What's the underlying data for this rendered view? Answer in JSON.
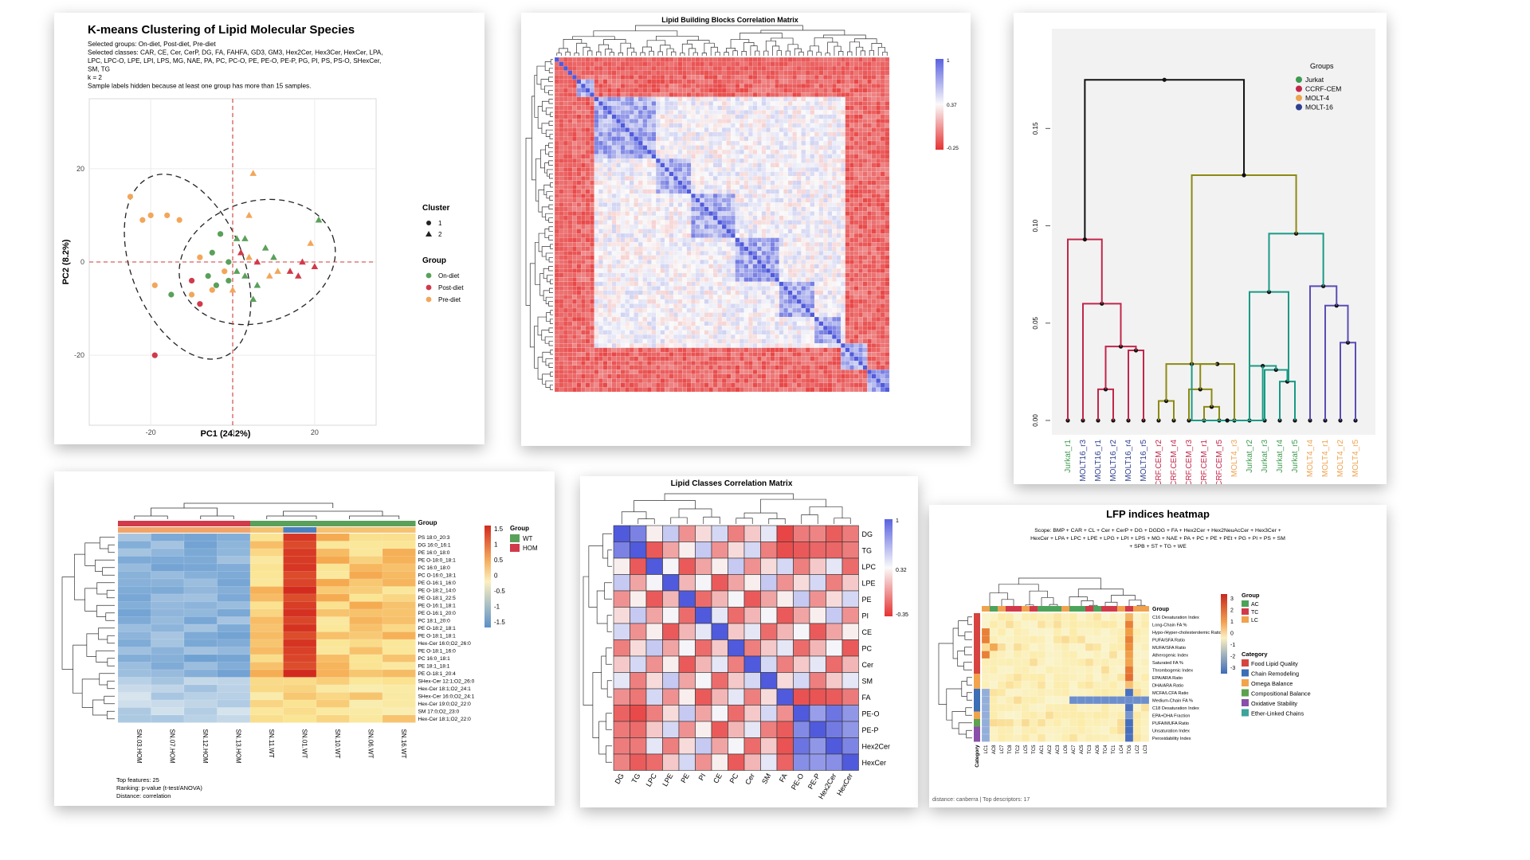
{
  "kmeans": {
    "title": "K-means Clustering of Lipid Molecular Species",
    "info": [
      "Selected groups: On-diet, Post-diet, Pre-diet",
      "Selected classes: CAR, CE, Cer, CerP, DG, FA, FAHFA, GD3, GM3, Hex2Cer, Hex3Cer, HexCer, LPA,",
      "LPC, LPC-O, LPE, LPI, LPS, MG, NAE, PA, PC, PC-O, PE, PE-O, PE-P, PG, PI, PS, PS-O, SHexCer,",
      "SM, TG",
      "k = 2",
      "Sample labels hidden because at least one group has more than 15 samples."
    ],
    "xlabel": "PC1 (24.2%)",
    "ylabel": "PC2 (8.2%)",
    "xticks": [
      "-20",
      "0",
      "20"
    ],
    "yticks": [
      "20",
      "0",
      "-20"
    ],
    "legend_cluster_title": "Cluster",
    "clusters": [
      "1",
      "2"
    ],
    "legend_group_title": "Group",
    "groups": [
      {
        "name": "On-diet",
        "color": "#5aa05a"
      },
      {
        "name": "Post-diet",
        "color": "#d03a4a"
      },
      {
        "name": "Pre-diet",
        "color": "#f2a65a"
      }
    ]
  },
  "chart_data": [
    {
      "type": "scatter",
      "title": "K-means Clustering of Lipid Molecular Species",
      "xlabel": "PC1 (24.2%)",
      "ylabel": "PC2 (8.2%)",
      "xlim": [
        -35,
        35
      ],
      "ylim": [
        -35,
        35
      ],
      "points": [
        {
          "x": -25,
          "y": 14,
          "group": "Pre-diet",
          "cluster": "1"
        },
        {
          "x": -20,
          "y": 10,
          "group": "Pre-diet",
          "cluster": "1"
        },
        {
          "x": -22,
          "y": 9,
          "group": "Pre-diet",
          "cluster": "1"
        },
        {
          "x": -16,
          "y": 10,
          "group": "Pre-diet",
          "cluster": "1"
        },
        {
          "x": -13,
          "y": 9,
          "group": "Pre-diet",
          "cluster": "1"
        },
        {
          "x": -19,
          "y": -5,
          "group": "Pre-diet",
          "cluster": "1"
        },
        {
          "x": -15,
          "y": -7,
          "group": "On-diet",
          "cluster": "1"
        },
        {
          "x": -10,
          "y": -7,
          "group": "Pre-diet",
          "cluster": "1"
        },
        {
          "x": -8,
          "y": -9,
          "group": "Post-diet",
          "cluster": "1"
        },
        {
          "x": -5,
          "y": -6,
          "group": "Pre-diet",
          "cluster": "1"
        },
        {
          "x": -10,
          "y": -4,
          "group": "Post-diet",
          "cluster": "1"
        },
        {
          "x": -6,
          "y": -3,
          "group": "On-diet",
          "cluster": "1"
        },
        {
          "x": -4,
          "y": -5,
          "group": "On-diet",
          "cluster": "1"
        },
        {
          "x": -1,
          "y": -4,
          "group": "On-diet",
          "cluster": "1"
        },
        {
          "x": -8,
          "y": 1,
          "group": "Pre-diet",
          "cluster": "1"
        },
        {
          "x": -5,
          "y": 2,
          "group": "On-diet",
          "cluster": "1"
        },
        {
          "x": -3,
          "y": 6,
          "group": "On-diet",
          "cluster": "1"
        },
        {
          "x": -1,
          "y": 0,
          "group": "On-diet",
          "cluster": "1"
        },
        {
          "x": -2,
          "y": -2,
          "group": "Pre-diet",
          "cluster": "1"
        },
        {
          "x": -19,
          "y": -20,
          "group": "Post-diet",
          "cluster": "1"
        },
        {
          "x": 5,
          "y": 19,
          "group": "Pre-diet",
          "cluster": "2"
        },
        {
          "x": 4,
          "y": 10,
          "group": "Pre-diet",
          "cluster": "2"
        },
        {
          "x": 1,
          "y": 5,
          "group": "On-diet",
          "cluster": "2"
        },
        {
          "x": 3,
          "y": 5,
          "group": "On-diet",
          "cluster": "2"
        },
        {
          "x": 2,
          "y": 2,
          "group": "Post-diet",
          "cluster": "2"
        },
        {
          "x": 4,
          "y": 1,
          "group": "Pre-diet",
          "cluster": "2"
        },
        {
          "x": 1,
          "y": -2,
          "group": "On-diet",
          "cluster": "2"
        },
        {
          "x": 3,
          "y": -3,
          "group": "On-diet",
          "cluster": "2"
        },
        {
          "x": 6,
          "y": 0,
          "group": "Post-diet",
          "cluster": "2"
        },
        {
          "x": 8,
          "y": 3,
          "group": "On-diet",
          "cluster": "2"
        },
        {
          "x": 10,
          "y": 1,
          "group": "On-diet",
          "cluster": "2"
        },
        {
          "x": 11,
          "y": -2,
          "group": "Pre-diet",
          "cluster": "2"
        },
        {
          "x": 14,
          "y": -2,
          "group": "Post-diet",
          "cluster": "2"
        },
        {
          "x": 16,
          "y": -3,
          "group": "Post-diet",
          "cluster": "2"
        },
        {
          "x": 17,
          "y": 0,
          "group": "Post-diet",
          "cluster": "2"
        },
        {
          "x": 20,
          "y": -1,
          "group": "Post-diet",
          "cluster": "2"
        },
        {
          "x": 9,
          "y": -3,
          "group": "Pre-diet",
          "cluster": "2"
        },
        {
          "x": 6,
          "y": -5,
          "group": "On-diet",
          "cluster": "2"
        },
        {
          "x": 21,
          "y": 9,
          "group": "On-diet",
          "cluster": "2"
        },
        {
          "x": 19,
          "y": 4,
          "group": "Pre-diet",
          "cluster": "2"
        },
        {
          "x": 5,
          "y": -8,
          "group": "On-diet",
          "cluster": "2"
        },
        {
          "x": 0,
          "y": -6,
          "group": "Pre-diet",
          "cluster": "2"
        }
      ]
    },
    {
      "type": "heatmap",
      "title": "Lipid Building Blocks Correlation Matrix",
      "legend_ticks": [
        "1",
        "0.37",
        "-0.25"
      ]
    },
    {
      "type": "line",
      "title": "",
      "yticks": [
        "0.15",
        "0.10",
        "0.05",
        "0.00"
      ],
      "ylim": [
        0,
        0.18
      ],
      "legend_title": "Groups",
      "groups": [
        {
          "name": "Jurkat",
          "color": "#3d9a4e"
        },
        {
          "name": "CCRF-CEM",
          "color": "#c2264a"
        },
        {
          "name": "MOLT-4",
          "color": "#eea34f"
        },
        {
          "name": "MOLT-16",
          "color": "#2e3f8f"
        }
      ],
      "leaves": [
        {
          "label": "Jurkat_r1",
          "color": "#3d9a4e"
        },
        {
          "label": "MOLT16_r3",
          "color": "#2e3f8f"
        },
        {
          "label": "MOLT16_r1",
          "color": "#2e3f8f"
        },
        {
          "label": "MOLT16_r2",
          "color": "#2e3f8f"
        },
        {
          "label": "MOLT16_r4",
          "color": "#2e3f8f"
        },
        {
          "label": "MOLT16_r5",
          "color": "#2e3f8f"
        },
        {
          "label": "CCRF.CEM_r2",
          "color": "#c2264a"
        },
        {
          "label": "CCRF.CEM_r4",
          "color": "#c2264a"
        },
        {
          "label": "CCRF.CEM_r3",
          "color": "#c2264a"
        },
        {
          "label": "CCRF.CEM_r1",
          "color": "#c2264a"
        },
        {
          "label": "CCRF.CEM_r5",
          "color": "#c2264a"
        },
        {
          "label": "MOLT4_r3",
          "color": "#eea34f"
        },
        {
          "label": "Jurkat_r2",
          "color": "#3d9a4e"
        },
        {
          "label": "Jurkat_r3",
          "color": "#3d9a4e"
        },
        {
          "label": "Jurkat_r4",
          "color": "#3d9a4e"
        },
        {
          "label": "Jurkat_r5",
          "color": "#3d9a4e"
        },
        {
          "label": "MOLT4_r4",
          "color": "#eea34f"
        },
        {
          "label": "MOLT4_r1",
          "color": "#eea34f"
        },
        {
          "label": "MOLT4_r2",
          "color": "#eea34f"
        },
        {
          "label": "MOLT4_r5",
          "color": "#eea34f"
        }
      ]
    },
    {
      "type": "heatmap",
      "title": "",
      "legend_ticks": [
        "1.5",
        "1",
        "0.5",
        "0",
        "-0.5",
        "-1",
        "-1.5"
      ],
      "group_title": "Group",
      "groups": [
        {
          "name": "WT",
          "color": "#5aa05a"
        },
        {
          "name": "HOM",
          "color": "#d03a4a"
        }
      ],
      "rows": [
        "PS 18:0_20:3",
        "DG 16:0_16:1",
        "PE 16:0_18:0",
        "PE O-18:0_18:1",
        "PC 16:0_18:0",
        "PC O-16:0_18:1",
        "PE O-16:1_16:0",
        "PE O-18:2_14:0",
        "PE O-18:1_22:5",
        "PE O-16:1_18:1",
        "PE O-16:1_20:0",
        "PC 18:1_20:0",
        "PE O-18:2_18:1",
        "PE O-18:1_18:1",
        "Hex-Cer 16:0;O2_26:0",
        "PE O-18:1_16:0",
        "PC 16:0_18:1",
        "PE 18:1_18:1",
        "PE O-18:1_20:4",
        "SHex-Cer 12:1;O2_26:0",
        "Hex-Cer 18:1;O2_24:1",
        "SHex-Cer 16:0;O2_24:1",
        "Hex-Cer 19:0;O2_22:0",
        "SM 17:0;O2_23:0",
        "Hex-Cer 18:1;O2_22:0"
      ],
      "columns": [
        "SN.03.HOM",
        "SN.07.HOM",
        "SN.12.HOM",
        "SN.13.HOM",
        "SN.11.WT",
        "SN.01.WT",
        "SN.10.WT",
        "SN.06.WT",
        "SN.16.WT"
      ],
      "column_groups": [
        "HOM",
        "HOM",
        "HOM",
        "HOM",
        "WT",
        "WT",
        "WT",
        "WT",
        "WT"
      ],
      "notes": [
        "Top features: 25",
        "Ranking: p-value (t-test/ANOVA)",
        "Distance: correlation"
      ]
    },
    {
      "type": "heatmap",
      "title": "Lipid Classes Correlation Matrix",
      "labels": [
        "DG",
        "TG",
        "LPC",
        "LPE",
        "PE",
        "PI",
        "CE",
        "PC",
        "Cer",
        "SM",
        "FA",
        "PE-O",
        "PE-P",
        "Hex2Cer",
        "HexCer"
      ],
      "legend_ticks": [
        "1",
        "0.32",
        "-0.35"
      ]
    },
    {
      "type": "heatmap",
      "title": "LFP indices heatmap",
      "scope": [
        "Scope: BMP + CAR + CL + Cer + CerP + DG + DGDG + FA + Hex2Cer + Hex2NeuAcCer + Hex3Cer +",
        "HexCer + LPA + LPC + LPE + LPG + LPI + LPS + MG + NAE + PA + PC + PE + PEt + PG + PI + PS + SM",
        "+ SPB + ST + TG + WE"
      ],
      "rows": [
        "C16 Desaturation Index",
        "Long-Chain FA %",
        "Hypo-/Hyper-cholesterolemic Ratio",
        "PUFA/SFA Ratio",
        "MUFA/SFA Ratio",
        "Atherogenic Index",
        "Saturated FA %",
        "Thrombogenic Index",
        "EPA/ARA Ratio",
        "DHA/ARA Ratio",
        "MCFA/LCFA Ratio",
        "Medium-Chain FA %",
        "C18 Desaturation Index",
        "EPA+DHA Fraction",
        "PUFA/MUFA Ratio",
        "Unsaturation Index",
        "Peroxidability Index"
      ],
      "columns": [
        "LC1",
        "AC8",
        "LC7",
        "TC8",
        "TC2",
        "LC5",
        "TC5",
        "AC1",
        "AC2",
        "AC3",
        "LC6",
        "AC7",
        "AC5",
        "TC3",
        "AC6",
        "TC4",
        "TC1",
        "LC4",
        "TC6",
        "LC2",
        "LC3"
      ],
      "legend_ticks": [
        "3",
        "2",
        "1",
        "0",
        "-1",
        "-2",
        "-3"
      ],
      "group_title": "Group",
      "groups": [
        {
          "name": "AC",
          "color": "#4ea35a"
        },
        {
          "name": "TC",
          "color": "#d23a4b"
        },
        {
          "name": "LC",
          "color": "#f0a24e"
        }
      ],
      "category_title": "Category",
      "categories": [
        {
          "name": "Food Lipid Quality",
          "color": "#d7443f"
        },
        {
          "name": "Chain Remodeling",
          "color": "#3b6fb6"
        },
        {
          "name": "Omega Balance",
          "color": "#f2a44d"
        },
        {
          "name": "Compositional Balance",
          "color": "#5da24f"
        },
        {
          "name": "Oxidative Stability",
          "color": "#8a4fa8"
        },
        {
          "name": "Ether-Linked Chains",
          "color": "#3ea39a"
        }
      ],
      "category_axis_label": "Category",
      "footer": "distance: canberra | Top descriptors: 17"
    }
  ]
}
